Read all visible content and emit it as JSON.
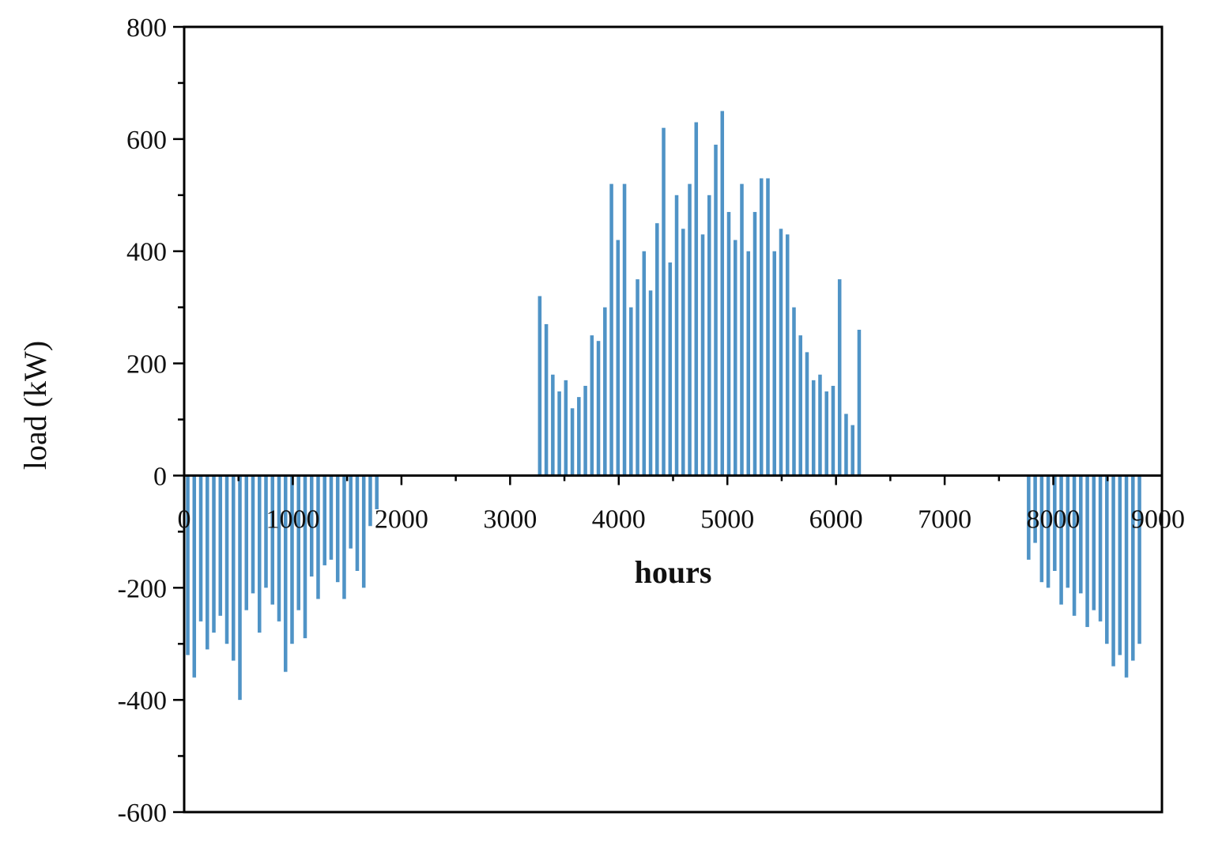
{
  "chart_data": {
    "type": "bar",
    "title": "",
    "xlabel": "hours",
    "ylabel": "load (kW)",
    "xlim": [
      0,
      9000
    ],
    "ylim": [
      -600,
      800
    ],
    "xticks": [
      "0",
      "1000",
      "2000",
      "3000",
      "4000",
      "5000",
      "6000",
      "7000",
      "8000",
      "9000"
    ],
    "yticks": [
      "800",
      "600",
      "400",
      "200",
      "0",
      "-200",
      "-400",
      "-600"
    ],
    "grid": false,
    "legend": "none",
    "color": "#4f93c6",
    "series": [
      {
        "x": [
          0,
          60,
          120,
          180,
          240,
          300,
          360,
          420,
          480,
          540,
          600,
          660,
          720,
          780,
          840,
          900,
          960,
          1020,
          1080,
          1140,
          1200,
          1260,
          1320,
          1380,
          1440,
          1500,
          1560,
          1620,
          1680,
          1740,
          3240,
          3300,
          3360,
          3420,
          3480,
          3540,
          3600,
          3660,
          3720,
          3780,
          3840,
          3900,
          3960,
          4020,
          4080,
          4140,
          4200,
          4260,
          4320,
          4380,
          4440,
          4500,
          4560,
          4620,
          4680,
          4740,
          4800,
          4860,
          4920,
          4980,
          5040,
          5100,
          5160,
          5220,
          5280,
          5340,
          5400,
          5460,
          5520,
          5580,
          5640,
          5700,
          5760,
          5820,
          5880,
          5940,
          6000,
          6060,
          6120,
          6180,
          7740,
          7800,
          7860,
          7920,
          7980,
          8040,
          8100,
          8160,
          8220,
          8280,
          8340,
          8400,
          8460,
          8520,
          8580,
          8640,
          8700,
          8760
        ],
        "values": [
          -320,
          -360,
          -260,
          -310,
          -280,
          -250,
          -300,
          -330,
          -400,
          -240,
          -210,
          -280,
          -200,
          -230,
          -260,
          -350,
          -300,
          -240,
          -290,
          -180,
          -220,
          -160,
          -150,
          -190,
          -220,
          -130,
          -170,
          -200,
          -90,
          -60,
          320,
          270,
          180,
          150,
          170,
          120,
          140,
          160,
          250,
          240,
          300,
          520,
          420,
          520,
          300,
          350,
          400,
          330,
          450,
          620,
          380,
          500,
          440,
          520,
          630,
          430,
          500,
          590,
          650,
          470,
          420,
          520,
          400,
          470,
          530,
          530,
          400,
          440,
          430,
          300,
          250,
          220,
          170,
          180,
          150,
          160,
          350,
          110,
          90,
          260,
          -150,
          -120,
          -190,
          -200,
          -170,
          -230,
          -200,
          -250,
          -210,
          -270,
          -240,
          -260,
          -300,
          -340,
          -320,
          -360,
          -330,
          -300
        ]
      }
    ]
  }
}
